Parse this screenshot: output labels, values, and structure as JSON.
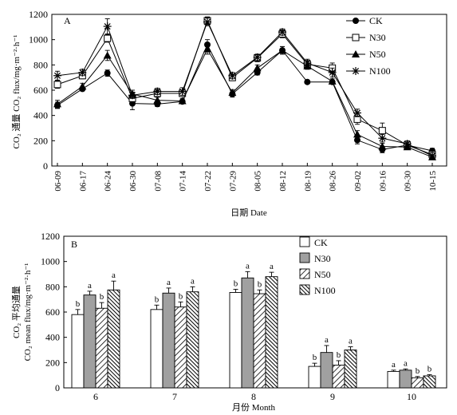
{
  "chart_data": [
    {
      "panel_label": "A",
      "type": "line",
      "xlabel": "日期 Date",
      "ylabel": "CO₂ 通量 CO₂ flux/mg·m⁻²·h⁻¹",
      "ylim": [
        0,
        1200
      ],
      "yticks": [
        0,
        200,
        400,
        600,
        800,
        1000,
        1200
      ],
      "categories": [
        "06-09",
        "06-17",
        "06-24",
        "06-30",
        "07-08",
        "07-14",
        "07-22",
        "07-29",
        "08-05",
        "08-12",
        "08-19",
        "08-26",
        "09-02",
        "09-16",
        "09-30",
        "10-15"
      ],
      "legend_position": "top-right",
      "series": [
        {
          "name": "CK",
          "marker": "filled-circle",
          "values": [
            480,
            610,
            735,
            495,
            490,
            510,
            960,
            570,
            740,
            915,
            665,
            665,
            205,
            130,
            165,
            120
          ],
          "errors": [
            25,
            15,
            25,
            50,
            20,
            15,
            40,
            25,
            20,
            30,
            10,
            10,
            30,
            25,
            20,
            20
          ]
        },
        {
          "name": "N30",
          "marker": "open-square",
          "values": [
            645,
            715,
            1010,
            535,
            575,
            575,
            1150,
            700,
            855,
            1045,
            805,
            775,
            370,
            280,
            165,
            90
          ],
          "errors": [
            30,
            25,
            30,
            30,
            30,
            25,
            30,
            25,
            30,
            30,
            30,
            40,
            40,
            60,
            25,
            30
          ]
        },
        {
          "name": "N50",
          "marker": "filled-triangle",
          "values": [
            490,
            630,
            875,
            570,
            520,
            515,
            925,
            580,
            775,
            915,
            790,
            670,
            250,
            155,
            150,
            70
          ],
          "errors": [
            30,
            25,
            40,
            30,
            25,
            20,
            40,
            25,
            25,
            30,
            25,
            20,
            30,
            25,
            20,
            20
          ]
        },
        {
          "name": "N100",
          "marker": "asterisk",
          "values": [
            715,
            740,
            1105,
            560,
            590,
            590,
            1140,
            715,
            860,
            1060,
            815,
            740,
            420,
            220,
            175,
            80
          ],
          "errors": [
            35,
            25,
            60,
            25,
            25,
            30,
            30,
            25,
            25,
            25,
            30,
            35,
            30,
            30,
            25,
            25
          ]
        }
      ]
    },
    {
      "panel_label": "B",
      "type": "bar",
      "xlabel": "月份 Month",
      "ylabel_line1": "CO₂ 平均通量",
      "ylabel_line2": "CO₂ mean flux/mg·m⁻²·h⁻¹",
      "ylim": [
        0,
        1200
      ],
      "yticks": [
        0,
        200,
        400,
        600,
        800,
        1000,
        1200
      ],
      "categories": [
        "6",
        "7",
        "8",
        "9",
        "10"
      ],
      "legend_position": "top-right",
      "series": [
        {
          "name": "CK",
          "fill": "white",
          "values": [
            580,
            620,
            755,
            170,
            130
          ],
          "errors": [
            40,
            35,
            25,
            25,
            10
          ],
          "letters": [
            "b",
            "b",
            "b",
            "b",
            "a"
          ]
        },
        {
          "name": "N30",
          "fill": "gray",
          "values": [
            735,
            750,
            870,
            280,
            140
          ],
          "errors": [
            30,
            40,
            50,
            55,
            10
          ],
          "letters": [
            "a",
            "a",
            "a",
            "a",
            "a"
          ]
        },
        {
          "name": "N50",
          "fill": "hatch-diagonal",
          "values": [
            630,
            640,
            745,
            180,
            80
          ],
          "errors": [
            45,
            40,
            30,
            35,
            10
          ],
          "letters": [
            "b",
            "b",
            "b",
            "b",
            "b"
          ]
        },
        {
          "name": "N100",
          "fill": "hatch-dense",
          "values": [
            775,
            760,
            880,
            300,
            95
          ],
          "errors": [
            70,
            40,
            35,
            25,
            10
          ],
          "letters": [
            "a",
            "a",
            "a",
            "a",
            "b"
          ]
        }
      ]
    }
  ]
}
